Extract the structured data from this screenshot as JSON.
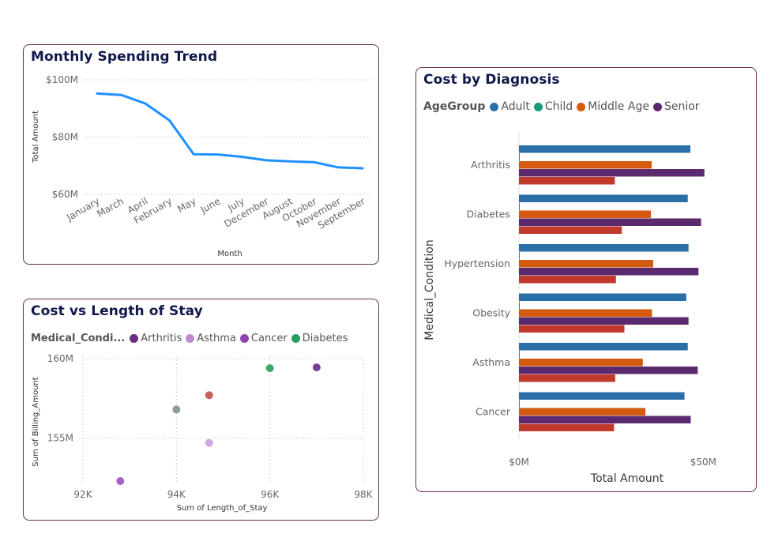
{
  "line_card": {
    "title": "Monthly Spending Trend"
  },
  "scatter_card": {
    "title": "Cost vs Length of Stay"
  },
  "bar_card": {
    "title": "Cost by Diagnosis"
  },
  "chart_data": [
    {
      "type": "line",
      "title": "Monthly Spending Trend",
      "xlabel": "Month",
      "ylabel": "Total Amount",
      "categories": [
        "January",
        "March",
        "April",
        "February",
        "May",
        "June",
        "July",
        "December",
        "August",
        "October",
        "November",
        "September"
      ],
      "series": [
        {
          "values": [
            95.2,
            94.7,
            91.7,
            85.8,
            74.0,
            73.9,
            73.1,
            71.9,
            71.5,
            71.2,
            69.4,
            69.1
          ]
        }
      ],
      "y_ticks": [
        "$60M",
        "$80M",
        "$100M"
      ],
      "ylim": [
        60,
        100
      ],
      "color": "#1e90ff",
      "grid": true
    },
    {
      "type": "scatter",
      "title": "Cost vs Length of Stay",
      "xlabel": "Sum of Length_of_Stay",
      "ylabel": "Sum of Billing_Amount",
      "legend_title": "Medical_Condi...",
      "legend": [
        {
          "name": "Arthritis",
          "color": "#6a2e84"
        },
        {
          "name": "Asthma",
          "color": "#c08ad0"
        },
        {
          "name": "Cancer",
          "color": "#8e44ad"
        },
        {
          "name": "Diabetes",
          "color": "#2a9d5c"
        }
      ],
      "x_ticks": [
        "92K",
        "94K",
        "96K",
        "98K"
      ],
      "x_tick_values": [
        92000,
        94000,
        96000,
        98000
      ],
      "y_ticks": [
        "155M",
        "160M"
      ],
      "y_tick_values": [
        155,
        160
      ],
      "xlim": [
        92000,
        98000
      ],
      "ylim": [
        152.2,
        160
      ],
      "points": [
        {
          "x": 92800,
          "y": 152.3,
          "color": "#9b4fc0"
        },
        {
          "x": 94000,
          "y": 156.8,
          "color": "#7f9490"
        },
        {
          "x": 94700,
          "y": 157.7,
          "color": "#c0504d"
        },
        {
          "x": 94700,
          "y": 154.7,
          "color": "#c9a0dc"
        },
        {
          "x": 96000,
          "y": 159.4,
          "color": "#2a9d5c"
        },
        {
          "x": 97000,
          "y": 159.45,
          "color": "#6a2e84"
        }
      ],
      "grid": true
    },
    {
      "type": "bar",
      "orientation": "horizontal",
      "title": "Cost by Diagnosis",
      "xlabel": "Total Amount",
      "ylabel": "Medical_Condition",
      "legend_title": "AgeGroup",
      "categories": [
        "Arthritis",
        "Diabetes",
        "Hypertension",
        "Obesity",
        "Asthma",
        "Cancer"
      ],
      "series": [
        {
          "name": "Adult",
          "color": "#2a6fa8",
          "values": [
            46.5,
            45.8,
            46.0,
            45.4,
            45.8,
            44.9
          ]
        },
        {
          "name": "Child",
          "color": "#1a9a7a",
          "values": [
            0.2,
            0.2,
            0.2,
            0.2,
            0.2,
            0.2
          ]
        },
        {
          "name": "Middle Age",
          "color": "#d45a0f",
          "values": [
            36.0,
            35.8,
            36.4,
            36.1,
            33.6,
            34.3
          ]
        },
        {
          "name": "Senior",
          "color": "#5b2a6e",
          "values": [
            50.3,
            49.4,
            48.7,
            46.0,
            48.5,
            46.6
          ]
        },
        {
          "color": "#c0392b",
          "values": [
            26.0,
            27.9,
            26.3,
            28.6,
            26.1,
            25.8
          ]
        }
      ],
      "x_ticks": [
        "$0M",
        "$50M"
      ],
      "x_tick_values": [
        0,
        50
      ],
      "xlim": [
        0,
        60
      ]
    }
  ]
}
